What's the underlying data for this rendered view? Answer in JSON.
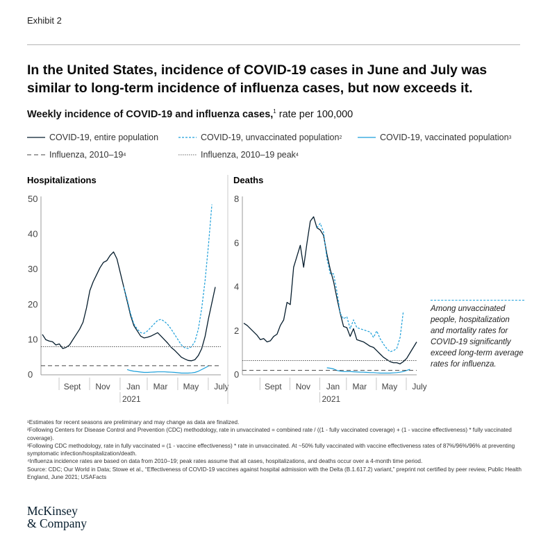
{
  "header": {
    "exhibit": "Exhibit 2",
    "headline": "In the United States, incidence of COVID-19 cases in June and July was similar to long-term incidence of influenza cases, but now exceeds it.",
    "subtitle_bold": "Weekly incidence of COVID-19 and influenza cases,",
    "subtitle_sup": "1",
    "subtitle_rest": " rate per 100,000"
  },
  "legend": [
    {
      "label": "COVID-19, entire population",
      "sup": "",
      "color": "#051c2c",
      "style": "solid"
    },
    {
      "label": "COVID-19, unvaccinated population",
      "sup": "2",
      "color": "#1a9ed9",
      "style": "dashed"
    },
    {
      "label": "COVID-19, vaccinated population",
      "sup": "3",
      "color": "#1a9ed9",
      "style": "solid"
    },
    {
      "label": "Influenza, 2010–19",
      "sup": "4",
      "color": "#444444",
      "style": "longdash"
    },
    {
      "label": "Influenza, 2010–19 peak",
      "sup": "4",
      "color": "#666666",
      "style": "dotted"
    }
  ],
  "annotation": "Among unvaccinated people, hospitalization and mortality rates for COVID-19 significantly exceed long-term average rates for influenza.",
  "footnotes": [
    "¹Estimates for recent seasons are preliminary and may change as data are finalized.",
    "²Following Centers for Disease Control and Prevention (CDC) methodology, rate in unvaccinated = combined rate / ((1 - fully vaccinated coverage) + (1 - vaccine effectiveness) * fully vaccinated coverage).",
    "³Following CDC methodology, rate in fully vaccinated = (1 - vaccine effectiveness) * rate in unvaccinated. At ~50% fully vaccinated with vaccine effectiveness rates of 87%/96%/96% at preventing symptomatic infection/hospitalization/death.",
    "⁴Influenza incidence rates are based on data from 2010–19; peak rates assume that all cases, hospitalizations, and deaths occur over a 4-month time period.",
    "Source: CDC; Our World in Data; Stowe et al., “Effectiveness of COVID-19 vaccines against hospital admission with the Delta (B.1.617.2) variant,” preprint not certified by peer review, Public Health England, June 2021; USAFacts"
  ],
  "logo": {
    "line1": "McKinsey",
    "line2": "& Company"
  },
  "colors": {
    "navy": "#051c2c",
    "cyan": "#1a9ed9",
    "gray": "#8a8a8a"
  },
  "chart_data": [
    {
      "type": "line",
      "title": "Hospitalizations",
      "x_tick_labels": [
        "Sept",
        "Nov",
        "Jan",
        "Mar",
        "May",
        "July"
      ],
      "x_tick_weeks": [
        8,
        17,
        26,
        34,
        43,
        52
      ],
      "year_label": "2021",
      "year_label_week": 26,
      "ylim": [
        0,
        50
      ],
      "y_ticks": [
        0,
        10,
        20,
        30,
        40,
        50
      ],
      "series": [
        {
          "name": "COVID-19, entire population",
          "start_week": 0,
          "values": [
            11.5,
            10,
            9.6,
            9.4,
            8.5,
            8.8,
            7.5,
            7.8,
            8.5,
            10,
            11.5,
            13,
            15,
            19,
            24,
            26.5,
            28.5,
            30.5,
            32,
            32.5,
            34,
            35,
            33,
            29,
            25,
            21,
            17,
            14,
            12.5,
            11,
            10.5,
            10.7,
            11,
            11.5,
            12,
            11,
            10,
            9,
            7.8,
            7,
            6,
            5,
            4.5,
            4.1,
            4,
            4.3,
            5.5,
            7.5,
            11,
            16,
            20.5,
            25
          ]
        },
        {
          "name": "COVID-19, unvaccinated population",
          "start_week": 24,
          "values": [
            25,
            21.5,
            17.5,
            14.5,
            13,
            12,
            11.8,
            12.5,
            13.5,
            14.5,
            15.5,
            15.8,
            15.2,
            14.3,
            13,
            11.5,
            10,
            8.5,
            7.7,
            7.5,
            8,
            9.5,
            13,
            19,
            27,
            37,
            48.5
          ]
        },
        {
          "name": "COVID-19, vaccinated population",
          "start_week": 25,
          "values": [
            1.5,
            1.2,
            1,
            0.9,
            0.8,
            0.7,
            0.7,
            0.75,
            0.8,
            0.85,
            0.85,
            0.85,
            0.8,
            0.75,
            0.7,
            0.6,
            0.5,
            0.5,
            0.5,
            0.55,
            0.7,
            1,
            1.5,
            2,
            2.5
          ]
        },
        {
          "name": "Influenza, 2010–19",
          "constant": 2.6
        },
        {
          "name": "Influenza, 2010–19 peak",
          "constant": 8
        }
      ]
    },
    {
      "type": "line",
      "title": "Deaths",
      "x_tick_labels": [
        "Sept",
        "Nov",
        "Jan",
        "Mar",
        "May",
        "July"
      ],
      "x_tick_weeks": [
        8,
        17,
        26,
        34,
        43,
        52
      ],
      "year_label": "2021",
      "year_label_week": 26,
      "ylim": [
        0,
        8
      ],
      "y_ticks": [
        0,
        2,
        4,
        6,
        8
      ],
      "series": [
        {
          "name": "COVID-19, entire population",
          "start_week": 0,
          "values": [
            2.35,
            2.25,
            2.1,
            1.95,
            1.8,
            1.6,
            1.65,
            1.5,
            1.55,
            1.75,
            1.85,
            2.25,
            2.5,
            3.3,
            3.2,
            4.9,
            5.4,
            5.9,
            4.9,
            6,
            7,
            7.2,
            6.7,
            6.6,
            6.35,
            5.5,
            4.8,
            4.25,
            3.5,
            2.8,
            2.2,
            2.15,
            1.75,
            2.1,
            1.6,
            1.55,
            1.5,
            1.4,
            1.3,
            1.25,
            1.1,
            0.95,
            0.8,
            0.7,
            0.6,
            0.55,
            0.55,
            0.5,
            0.6,
            0.75,
            1,
            1.25,
            1.5
          ]
        },
        {
          "name": "COVID-19, unvaccinated population",
          "start_week": 22,
          "values": [
            6.7,
            6.9,
            6.5,
            5.3,
            4.6,
            4.6,
            3.8,
            2.8,
            2.55,
            2.65,
            2.1,
            2.5,
            2.15,
            2.1,
            2.05,
            2,
            1.95,
            1.7,
            2,
            1.65,
            1.4,
            1.2,
            1.05,
            1.1,
            1.2,
            1.7,
            2.9
          ]
        },
        {
          "name": "COVID-19, vaccinated population",
          "start_week": 25,
          "values": [
            0.32,
            0.3,
            0.27,
            0.2,
            0.17,
            0.15,
            0.15,
            0.15,
            0.14,
            0.13,
            0.12,
            0.12,
            0.11,
            0.1,
            0.1,
            0.09,
            0.08,
            0.08,
            0.08,
            0.08,
            0.09,
            0.1,
            0.12,
            0.15,
            0.2,
            0.25
          ]
        },
        {
          "name": "Influenza, 2010–19",
          "constant": 0.2
        },
        {
          "name": "Influenza, 2010–19 peak",
          "constant": 0.65
        }
      ]
    }
  ]
}
